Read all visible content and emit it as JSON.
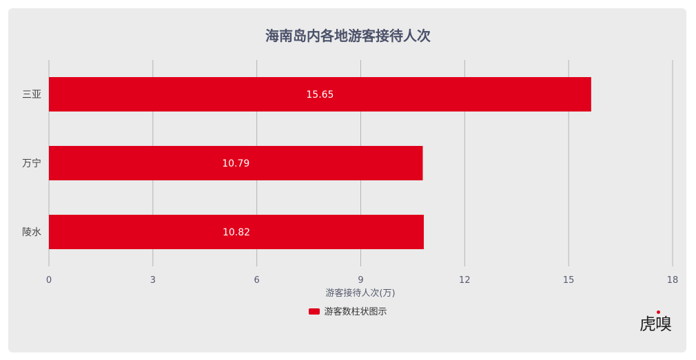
{
  "chart_data": {
    "type": "bar",
    "orientation": "horizontal",
    "title": "海南岛内各地游客接待人次",
    "categories": [
      "三亚",
      "万宁",
      "陵水"
    ],
    "series": [
      {
        "name": "游客数柱状图示",
        "values": [
          15.65,
          10.79,
          10.82
        ],
        "color": "#e0001b"
      }
    ],
    "xlabel": "游客接待人次(万)",
    "xlim": [
      0,
      18
    ],
    "xticks": [
      0,
      3,
      6,
      9,
      12,
      15,
      18
    ],
    "grid": true,
    "legend": "bottom-center",
    "data_labels": [
      "15.65",
      "10.79",
      "10.82"
    ]
  },
  "logo": {
    "text": "虎嗅"
  }
}
